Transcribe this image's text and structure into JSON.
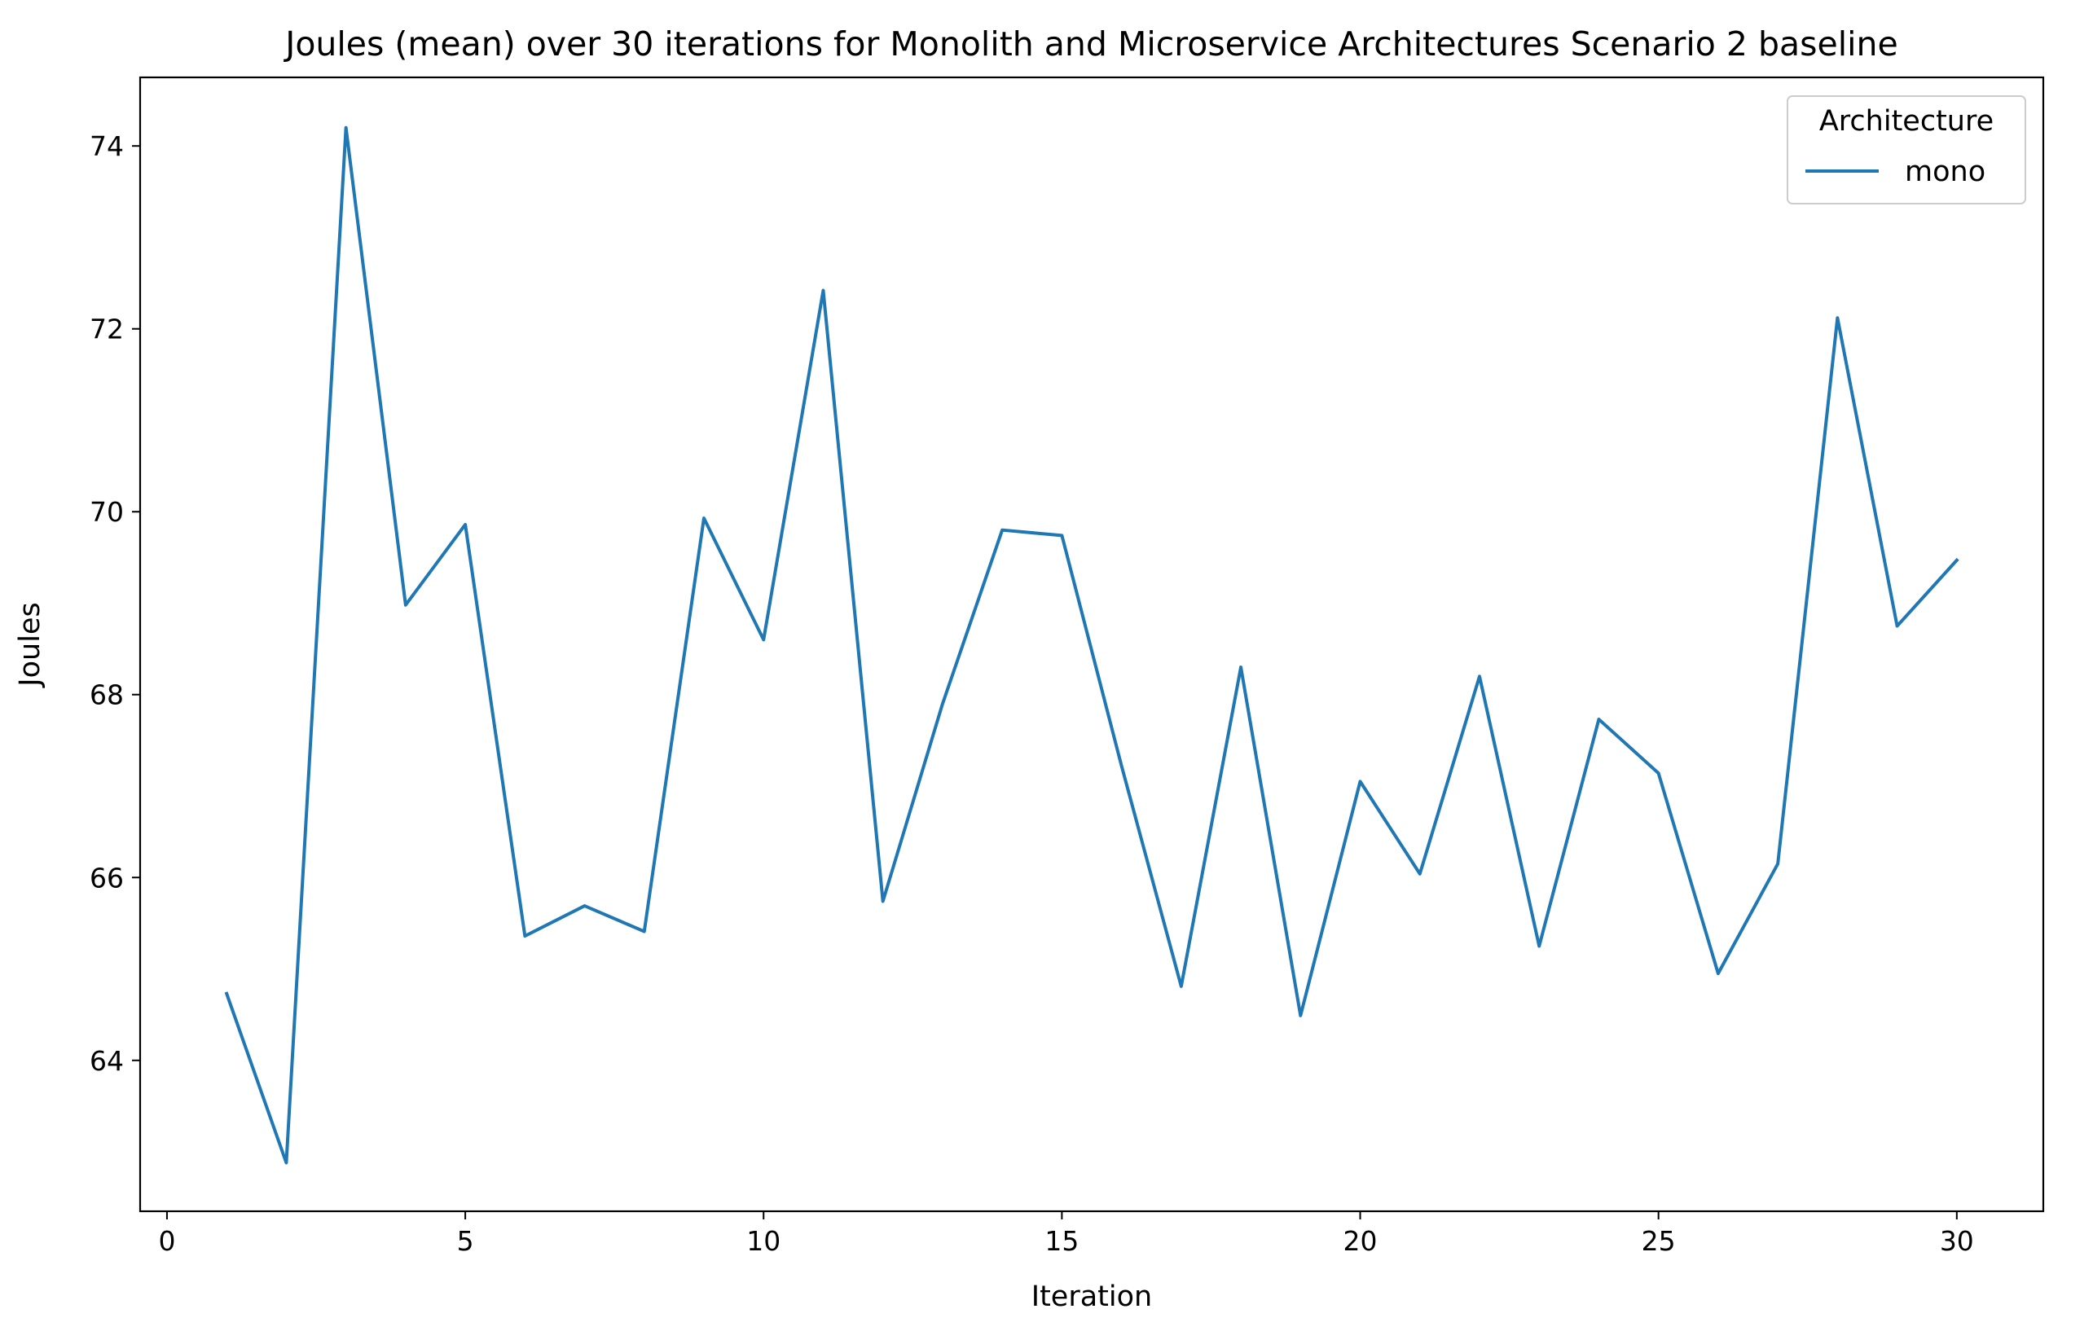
{
  "chart_data": {
    "type": "line",
    "title": "Joules (mean) over 30 iterations for Monolith and Microservice Architectures Scenario 2 baseline",
    "xlabel": "Iteration",
    "ylabel": "Joules",
    "xlim": [
      -0.45,
      31.45
    ],
    "ylim": [
      62.35,
      74.75
    ],
    "xticks": [
      0,
      5,
      10,
      15,
      20,
      25,
      30
    ],
    "yticks": [
      64,
      66,
      68,
      70,
      72,
      74
    ],
    "xtick_labels": [
      "0",
      "5",
      "10",
      "15",
      "20",
      "25",
      "30"
    ],
    "ytick_labels": [
      "64",
      "66",
      "68",
      "70",
      "72",
      "74"
    ],
    "grid": false,
    "legend": {
      "title": "Architecture",
      "placement": "upper right"
    },
    "x": [
      1,
      2,
      3,
      4,
      5,
      6,
      7,
      8,
      9,
      10,
      11,
      12,
      13,
      14,
      15,
      16,
      17,
      18,
      19,
      20,
      21,
      22,
      23,
      24,
      25,
      26,
      27,
      28,
      29,
      30
    ],
    "series": [
      {
        "name": "mono",
        "color": "#1f77b4",
        "values": [
          64.73,
          62.88,
          74.2,
          68.98,
          69.86,
          65.36,
          65.69,
          65.41,
          69.93,
          68.6,
          72.42,
          65.74,
          67.9,
          69.8,
          69.74,
          67.22,
          64.81,
          68.3,
          64.49,
          67.05,
          66.04,
          68.2,
          65.25,
          67.73,
          67.14,
          64.95,
          66.15,
          72.12,
          68.75,
          69.47
        ]
      }
    ]
  }
}
